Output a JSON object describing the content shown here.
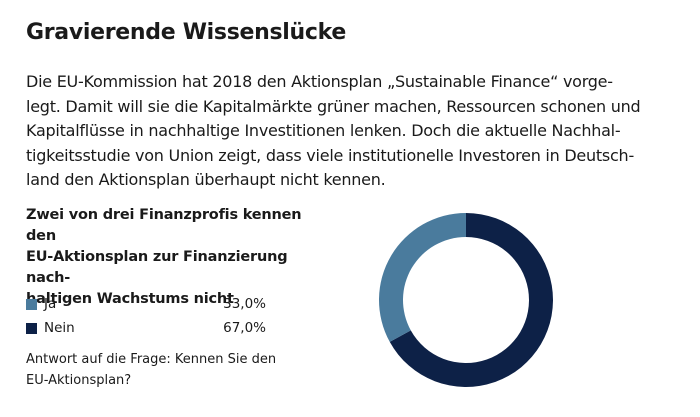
{
  "title": "Gravierende Wissenslücke",
  "intro_lines": [
    "Die EU-Kommission hat 2018 den Aktionsplan „Sustainable Finance“ vorge-",
    "legt. Damit will sie die Kapitalmärkte grüner machen, Ressourcen schonen und",
    "Kapitalflüsse in nachhaltige Investitionen lenken. Doch die aktuelle Nachhal-",
    "tigkeitsstudie von Union zeigt, dass viele institutionelle Investoren in Deutsch-",
    "land den Aktionsplan überhaupt nicht kennen."
  ],
  "chart_data": {
    "type": "pie",
    "variant": "donut",
    "title_lines": [
      "Zwei von drei Finanzprofis kennen den",
      "EU-Aktionsplan zur Finanzierung nach-",
      "haltigen Wachstums nicht"
    ],
    "categories": [
      "Ja",
      "Nein"
    ],
    "values": [
      33.0,
      67.0
    ],
    "value_labels": [
      "33,0%",
      "67,0%"
    ],
    "colors": [
      "#4a7b9d",
      "#0d2147"
    ],
    "legend_placement": "left",
    "note_lines": [
      "Antwort auf die Frage: Kennen Sie den",
      "EU-Aktionsplan?"
    ]
  }
}
